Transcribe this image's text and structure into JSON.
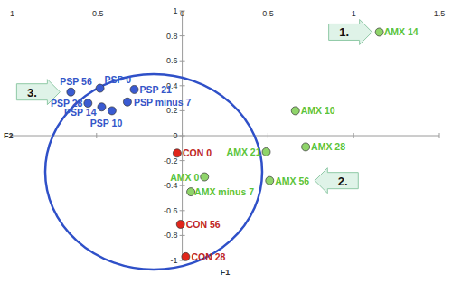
{
  "chart_data": {
    "type": "scatter",
    "x_label": "F1",
    "y_label": "F2",
    "xlim": [
      -1,
      1.5
    ],
    "ylim": [
      -1,
      1
    ],
    "xticks": [
      -1,
      -0.5,
      0,
      0.5,
      1,
      1.5
    ],
    "yticks": [
      -1,
      -0.8,
      -0.6,
      -0.4,
      -0.2,
      0,
      0.2,
      0.4,
      0.6,
      0.8,
      1
    ],
    "grid": false,
    "series": [
      {
        "color": "#3a5bd2",
        "marker": "circle",
        "labels": [
          "PSP minus 7",
          "PSP 0",
          "PSP 10",
          "PSP 14",
          "PSP 21",
          "PSP 28",
          "PSP 56"
        ],
        "x": [
          -0.32,
          -0.48,
          -0.41,
          -0.47,
          -0.28,
          -0.55,
          -0.65
        ],
        "y": [
          0.27,
          0.38,
          0.2,
          0.23,
          0.37,
          0.26,
          0.35
        ]
      },
      {
        "color": "#e0261b",
        "marker": "circle",
        "labels": [
          "CON 0",
          "CON 28",
          "CON 56"
        ],
        "x": [
          -0.03,
          0.02,
          -0.01
        ],
        "y": [
          -0.14,
          -0.97,
          -0.71
        ]
      },
      {
        "color": "#8fd46a",
        "marker": "circle",
        "labels": [
          "AMX minus 7",
          "AMX 0",
          "AMX 10",
          "AMX 14",
          "AMX 21",
          "AMX 28",
          "AMX 56"
        ],
        "x": [
          0.05,
          0.13,
          0.66,
          1.15,
          0.49,
          0.72,
          0.51
        ],
        "y": [
          -0.45,
          -0.33,
          0.2,
          0.83,
          -0.13,
          -0.09,
          -0.36
        ]
      }
    ],
    "annotations": [
      {
        "text": "1.",
        "target": "AMX 14"
      },
      {
        "text": "2.",
        "target": "AMX 56"
      },
      {
        "text": "3.",
        "target": "PSP 56"
      }
    ]
  }
}
